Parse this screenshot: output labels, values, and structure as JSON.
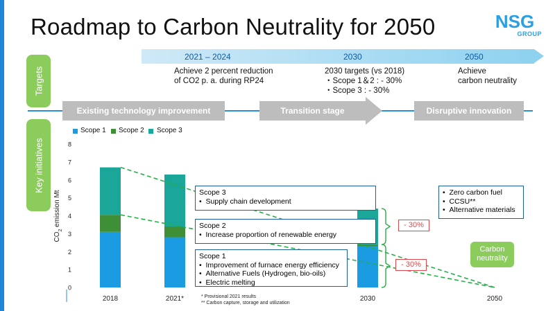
{
  "title": "Roadmap to Carbon Neutrality for 2050",
  "logo": {
    "text": "NSG",
    "subtitle": "GROUP",
    "color": "#2a9fe3"
  },
  "side_tags": {
    "targets": "Targets",
    "initiatives": "Key initiatives"
  },
  "timeline": {
    "periods": [
      {
        "label": "2021 – 2024",
        "target_lines": [
          "Achieve 2 percent reduction",
          "of CO2 p. a. during RP24"
        ]
      },
      {
        "label": "2030",
        "target_lines": [
          "2030 targets (vs 2018)",
          "・Scope 1＆2 : - 30%",
          "・Scope 3 : - 30%"
        ]
      },
      {
        "label": "2050",
        "target_lines": [
          "Achieve",
          "carbon neutrality"
        ]
      }
    ]
  },
  "stages": [
    "Existing technology improvement",
    "Transition stage",
    "Disruptive innovation"
  ],
  "chart_data": {
    "type": "bar",
    "stacked": true,
    "categories": [
      "2018",
      "2021*",
      "2030",
      "2050"
    ],
    "series": [
      {
        "name": "Scope 1",
        "color": "#1b9be2",
        "values": [
          3.1,
          2.8,
          2.3,
          0
        ]
      },
      {
        "name": "Scope 2",
        "color": "#3e8f35",
        "values": [
          0.95,
          0.6,
          0.1,
          0
        ]
      },
      {
        "name": "Scope 3",
        "color": "#1aa79a",
        "values": [
          2.65,
          2.9,
          2.0,
          0
        ]
      }
    ],
    "ylabel": "CO2 emission Mt",
    "ylim": [
      0,
      8
    ],
    "yticks": [
      0,
      1,
      2,
      3,
      4,
      5,
      6,
      7,
      8
    ],
    "grid": false,
    "legend": "top-left"
  },
  "annotation_boxes": [
    {
      "title": "Scope 3",
      "items": [
        "Supply chain development"
      ]
    },
    {
      "title": "Scope 2",
      "items": [
        "Increase proportion of renewable energy"
      ]
    },
    {
      "title": "Scope 1",
      "items": [
        "Improvement of furnace energy efficiency",
        "Alternative Fuels (Hydrogen, bio-oils)",
        "Electric melting"
      ]
    }
  ],
  "future_box": {
    "items": [
      "Zero carbon fuel",
      "CCSU**",
      "Alternative materials"
    ]
  },
  "reductions": [
    "- 30%",
    "- 30%"
  ],
  "carbon_badge": [
    "Carbon",
    "neutrality"
  ],
  "footnotes": [
    "*   Provisional 2021 results",
    "**  Carbon capture, storage and utilization"
  ],
  "colors": {
    "accent_blue": "#1e86d6",
    "tag_green": "#8ccc5c",
    "stage_gray": "#bdbdbd",
    "dashed_green": "#27ad48",
    "reduction_red": "#e0474c"
  }
}
